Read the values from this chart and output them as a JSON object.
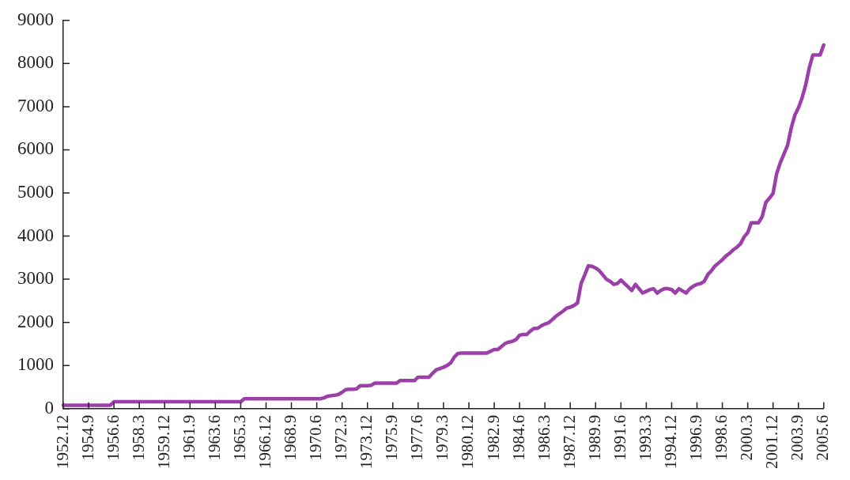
{
  "chart_data": {
    "type": "line",
    "categories": [
      "1952.12",
      null,
      null,
      null,
      null,
      null,
      null,
      "1954.9",
      null,
      null,
      null,
      null,
      null,
      null,
      "1956.6",
      null,
      null,
      null,
      null,
      null,
      null,
      "1958.3",
      null,
      null,
      null,
      null,
      null,
      null,
      "1959.12",
      null,
      null,
      null,
      null,
      null,
      null,
      "1961.9",
      null,
      null,
      null,
      null,
      null,
      null,
      "1963.6",
      null,
      null,
      null,
      null,
      null,
      null,
      "1965.3",
      null,
      null,
      null,
      null,
      null,
      null,
      "1966.12",
      null,
      null,
      null,
      null,
      null,
      null,
      "1968.9",
      null,
      null,
      null,
      null,
      null,
      null,
      "1970.6",
      null,
      null,
      null,
      null,
      null,
      null,
      "1972.3",
      null,
      null,
      null,
      null,
      null,
      null,
      "1973.12",
      null,
      null,
      null,
      null,
      null,
      null,
      "1975.9",
      null,
      null,
      null,
      null,
      null,
      null,
      "1977.6",
      null,
      null,
      null,
      null,
      null,
      null,
      "1979.3",
      null,
      null,
      null,
      null,
      null,
      null,
      "1980.12",
      null,
      null,
      null,
      null,
      null,
      null,
      "1982.9",
      null,
      null,
      null,
      null,
      null,
      null,
      "1984.6",
      null,
      null,
      null,
      null,
      null,
      null,
      "1986.3",
      null,
      null,
      null,
      null,
      null,
      null,
      "1987.12",
      null,
      null,
      null,
      null,
      null,
      null,
      "1989.9",
      null,
      null,
      null,
      null,
      null,
      null,
      "1991.6",
      null,
      null,
      null,
      null,
      null,
      null,
      "1993.3",
      null,
      null,
      null,
      null,
      null,
      null,
      "1994.12",
      null,
      null,
      null,
      null,
      null,
      null,
      "1996.9",
      null,
      null,
      null,
      null,
      null,
      null,
      "1998.6",
      null,
      null,
      null,
      null,
      null,
      null,
      "2000.3",
      null,
      null,
      null,
      null,
      null,
      null,
      "2001.12",
      null,
      null,
      null,
      null,
      null,
      null,
      "2003.9",
      null,
      null,
      null,
      null,
      null,
      null,
      "2005.6"
    ],
    "series": [
      {
        "color": "#9b40a8",
        "values": [
          80,
          80,
          80,
          80,
          80,
          80,
          80,
          80,
          80,
          80,
          80,
          80,
          80,
          80,
          160,
          160,
          160,
          160,
          160,
          160,
          160,
          160,
          160,
          160,
          160,
          160,
          160,
          160,
          160,
          160,
          160,
          160,
          160,
          160,
          160,
          160,
          160,
          160,
          160,
          160,
          160,
          160,
          160,
          160,
          160,
          160,
          160,
          160,
          160,
          160,
          230,
          230,
          230,
          230,
          230,
          230,
          230,
          230,
          230,
          230,
          230,
          230,
          230,
          230,
          230,
          230,
          230,
          230,
          230,
          230,
          230,
          230,
          250,
          290,
          300,
          310,
          330,
          380,
          440,
          450,
          450,
          460,
          530,
          530,
          530,
          540,
          590,
          590,
          590,
          590,
          590,
          590,
          590,
          650,
          650,
          650,
          650,
          650,
          730,
          730,
          730,
          730,
          820,
          900,
          930,
          960,
          1000,
          1060,
          1200,
          1280,
          1290,
          1290,
          1290,
          1290,
          1290,
          1290,
          1290,
          1290,
          1330,
          1370,
          1370,
          1440,
          1510,
          1540,
          1560,
          1600,
          1700,
          1720,
          1720,
          1800,
          1860,
          1860,
          1920,
          1960,
          1990,
          2060,
          2140,
          2200,
          2260,
          2330,
          2350,
          2390,
          2450,
          2900,
          3100,
          3310,
          3300,
          3260,
          3200,
          3100,
          3000,
          2950,
          2880,
          2900,
          2980,
          2900,
          2820,
          2740,
          2880,
          2780,
          2680,
          2720,
          2760,
          2780,
          2680,
          2740,
          2780,
          2780,
          2760,
          2680,
          2780,
          2730,
          2680,
          2780,
          2840,
          2880,
          2900,
          2950,
          3110,
          3200,
          3310,
          3380,
          3450,
          3540,
          3600,
          3680,
          3740,
          3820,
          3980,
          4080,
          4310,
          4310,
          4310,
          4450,
          4780,
          4880,
          4990,
          5450,
          5700,
          5900,
          6100,
          6500,
          6800,
          6970,
          7200,
          7500,
          7900,
          8200,
          8200,
          8200,
          8430
        ]
      }
    ],
    "ylim": [
      0,
      9000
    ],
    "yticks": [
      0,
      1000,
      2000,
      3000,
      4000,
      5000,
      6000,
      7000,
      8000,
      9000
    ],
    "grid": false,
    "legend": false,
    "marker": "none",
    "line_style": "solid"
  }
}
